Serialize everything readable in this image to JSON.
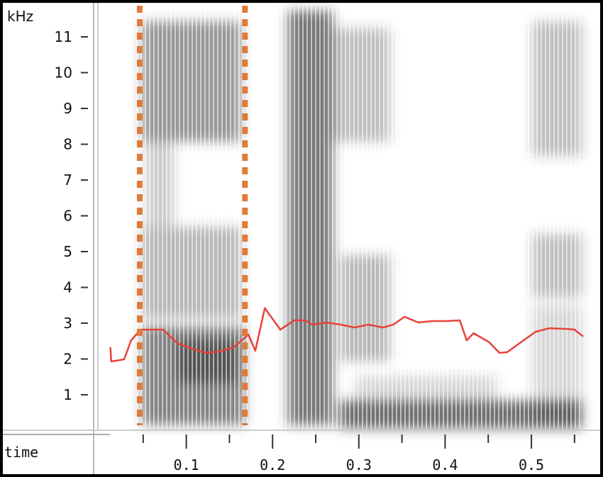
{
  "chart_data": {
    "type": "spectrogram",
    "y_label": "kHz",
    "x_label": "time",
    "ylim": [
      0,
      11.9
    ],
    "yticks": [
      1,
      2,
      3,
      4,
      5,
      6,
      7,
      8,
      9,
      10,
      11
    ],
    "xlim": [
      0,
      0.56
    ],
    "xticks": [
      0.1,
      0.2,
      0.3,
      0.4,
      0.5
    ],
    "x_minor_ticks": [
      0.05,
      0.15,
      0.25,
      0.35,
      0.45,
      0.55
    ],
    "series": [
      {
        "color": "#e8413a",
        "x": [
          0.012,
          0.013,
          0.028,
          0.036,
          0.047,
          0.073,
          0.09,
          0.106,
          0.122,
          0.139,
          0.155,
          0.172,
          0.18,
          0.191,
          0.209,
          0.225,
          0.238,
          0.246,
          0.262,
          0.279,
          0.295,
          0.311,
          0.328,
          0.34,
          0.353,
          0.369,
          0.385,
          0.402,
          0.417,
          0.425,
          0.433,
          0.451,
          0.463,
          0.472,
          0.488,
          0.505,
          0.521,
          0.542,
          0.55,
          0.56
        ],
        "values": [
          2.33,
          1.93,
          1.99,
          2.52,
          2.82,
          2.82,
          2.43,
          2.29,
          2.17,
          2.21,
          2.33,
          2.68,
          2.23,
          3.42,
          2.82,
          3.08,
          3.08,
          2.96,
          3.02,
          2.96,
          2.88,
          2.96,
          2.88,
          2.96,
          3.18,
          3.02,
          3.06,
          3.06,
          3.08,
          2.52,
          2.72,
          2.47,
          2.17,
          2.19,
          2.47,
          2.76,
          2.86,
          2.84,
          2.82,
          2.63
        ]
      }
    ],
    "markers": {
      "color": "#e07b39",
      "x": [
        0.046,
        0.168
      ]
    }
  }
}
